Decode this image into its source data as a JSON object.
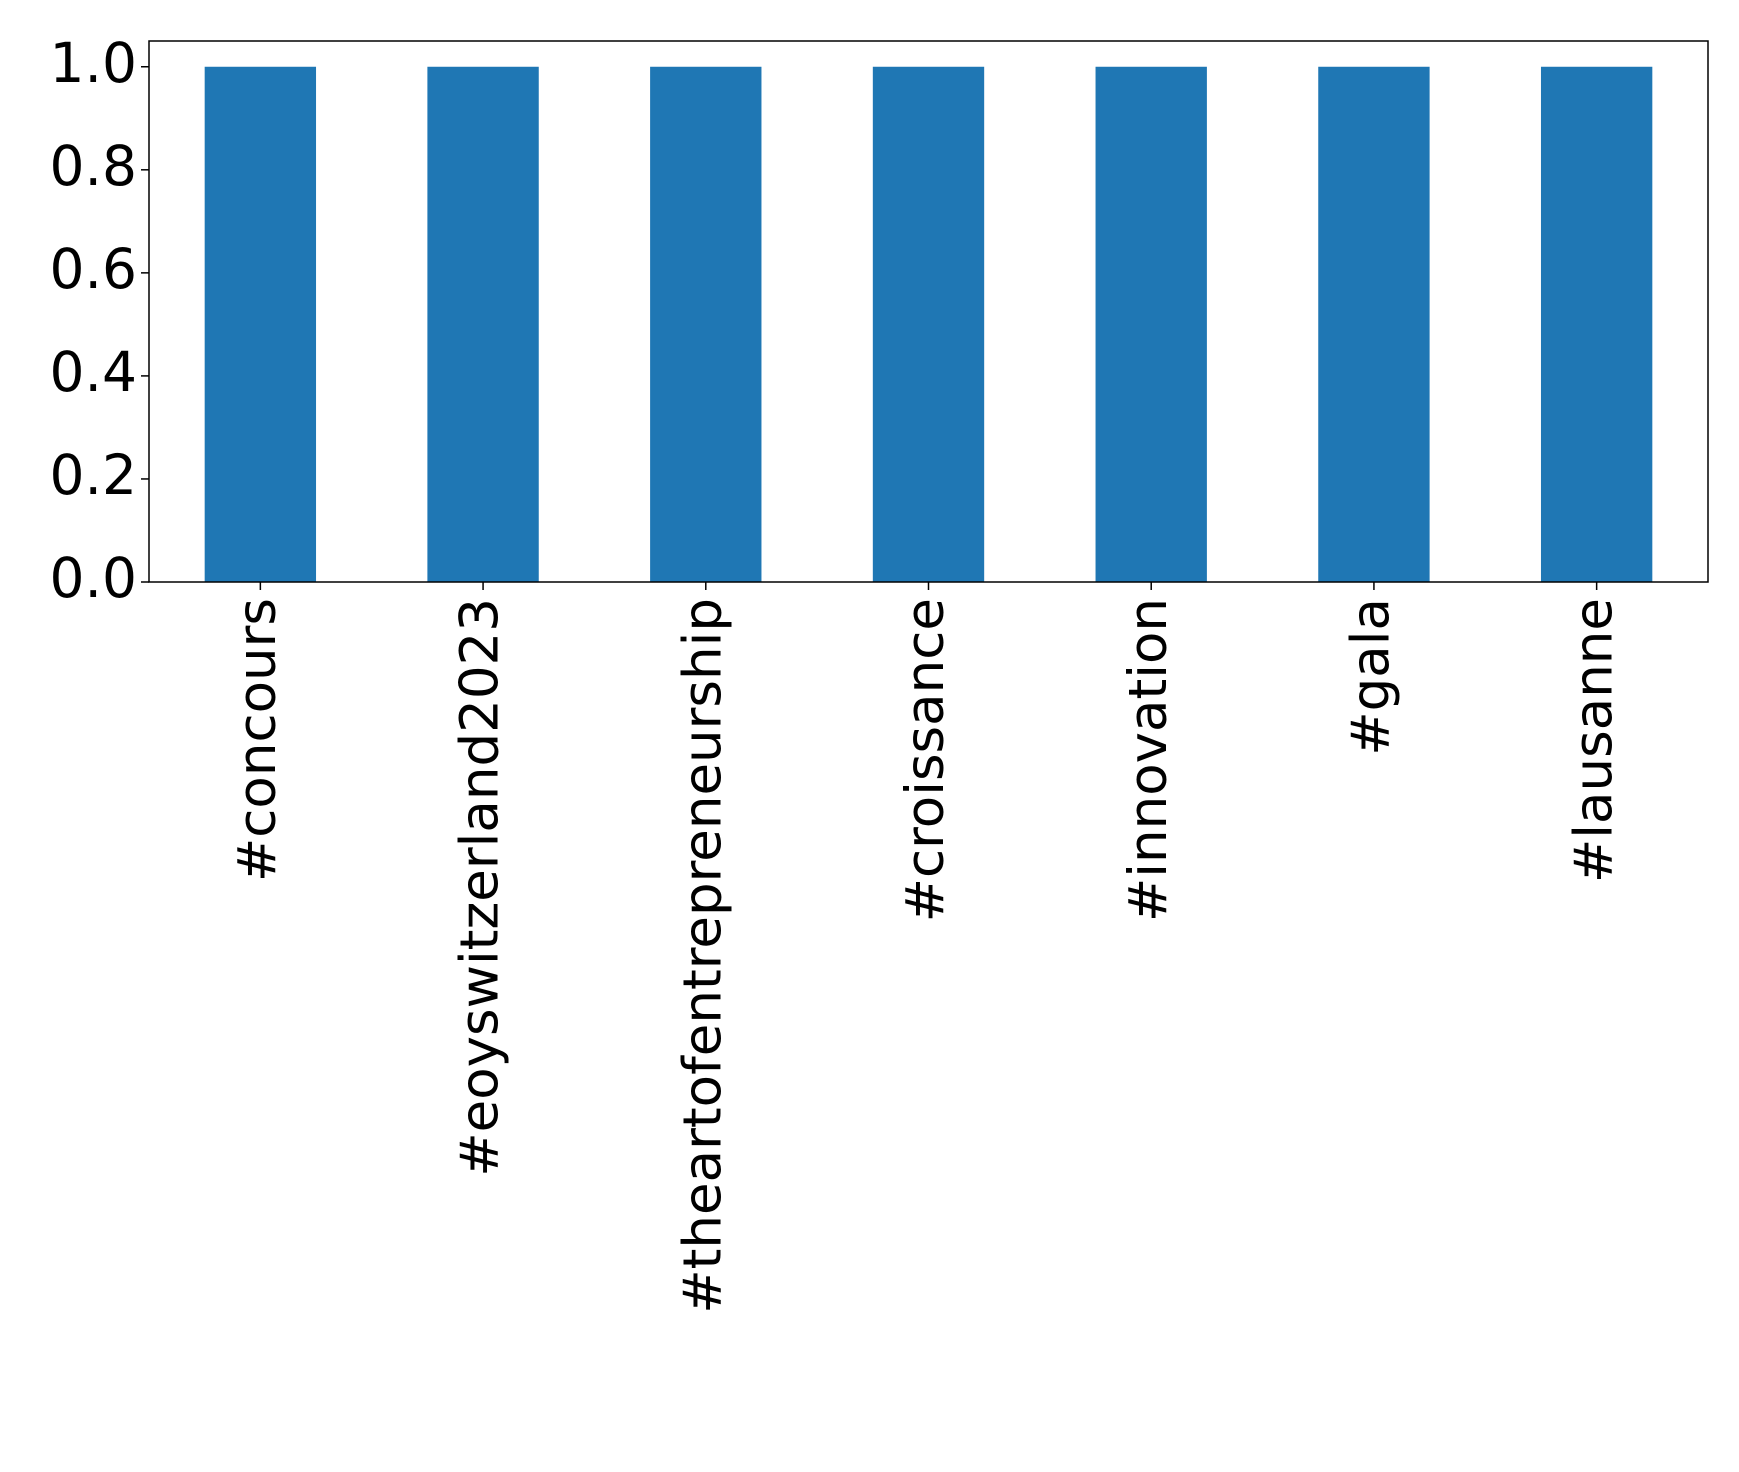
{
  "chart_data": {
    "type": "bar",
    "categories": [
      "#concours",
      "#eoyswitzerland2023",
      "#theartofentrepreneurship",
      "#croissance",
      "#innovation",
      "#gala",
      "#lausanne"
    ],
    "values": [
      1,
      1,
      1,
      1,
      1,
      1,
      1
    ],
    "color": "#1f77b4",
    "ylim": [
      0,
      1.05
    ],
    "yticks": [
      {
        "value": 0,
        "label": "0.0"
      },
      0.2,
      0.4,
      0.6,
      0.8,
      {
        "value": 1,
        "label": "1.0"
      }
    ],
    "grid": false
  }
}
